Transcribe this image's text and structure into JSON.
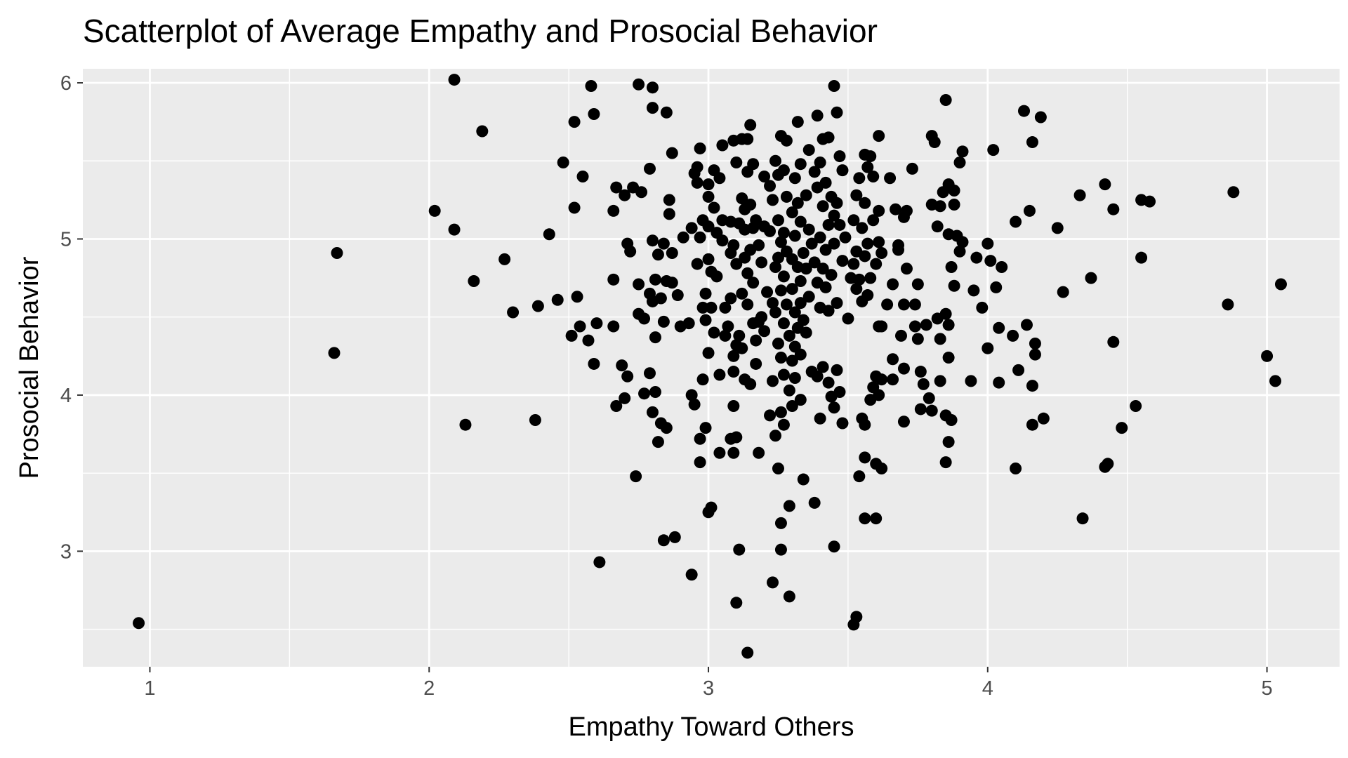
{
  "chart_data": {
    "type": "scatter",
    "title": "Scatterplot of Average Empathy and Prosocial Behavior",
    "xlabel": "Empathy Toward Others",
    "ylabel": "Prosocial Behavior",
    "xlim": [
      0.76,
      5.26
    ],
    "ylim": [
      2.26,
      6.09
    ],
    "x_ticks": [
      1,
      2,
      3,
      4,
      5
    ],
    "y_ticks": [
      3,
      4,
      5,
      6
    ],
    "x_tick_labels": [
      "1",
      "2",
      "3",
      "4",
      "5"
    ],
    "y_tick_labels": [
      "3",
      "4",
      "5",
      "6"
    ],
    "grid": true,
    "panel_background": "#ebebeb",
    "grid_color": "#ffffff",
    "point_color": "#000000",
    "legend": "none",
    "points": [
      [
        0.96,
        2.54
      ],
      [
        1.66,
        4.27
      ],
      [
        1.67,
        4.91
      ],
      [
        2.02,
        5.18
      ],
      [
        2.09,
        6.02
      ],
      [
        2.09,
        5.06
      ],
      [
        2.13,
        3.81
      ],
      [
        2.16,
        4.73
      ],
      [
        2.19,
        5.69
      ],
      [
        2.27,
        4.87
      ],
      [
        2.3,
        4.53
      ],
      [
        2.38,
        3.84
      ],
      [
        2.39,
        4.57
      ],
      [
        2.43,
        5.03
      ],
      [
        2.46,
        4.61
      ],
      [
        2.48,
        5.49
      ],
      [
        2.52,
        5.75
      ],
      [
        2.52,
        5.2
      ],
      [
        2.53,
        4.63
      ],
      [
        2.54,
        4.44
      ],
      [
        2.55,
        5.4
      ],
      [
        2.51,
        4.38
      ],
      [
        2.57,
        4.35
      ],
      [
        2.58,
        5.98
      ],
      [
        2.59,
        5.8
      ],
      [
        2.59,
        4.2
      ],
      [
        2.6,
        4.46
      ],
      [
        2.61,
        2.93
      ],
      [
        2.66,
        5.18
      ],
      [
        2.66,
        4.74
      ],
      [
        2.66,
        4.44
      ],
      [
        2.67,
        3.93
      ],
      [
        2.67,
        5.33
      ],
      [
        2.69,
        4.19
      ],
      [
        2.7,
        5.28
      ],
      [
        2.7,
        3.98
      ],
      [
        2.71,
        4.12
      ],
      [
        2.71,
        4.97
      ],
      [
        2.72,
        4.92
      ],
      [
        2.73,
        5.33
      ],
      [
        2.74,
        3.48
      ],
      [
        2.75,
        4.71
      ],
      [
        2.75,
        4.52
      ],
      [
        2.75,
        5.99
      ],
      [
        2.76,
        5.3
      ],
      [
        2.77,
        4.49
      ],
      [
        2.77,
        4.01
      ],
      [
        2.79,
        5.45
      ],
      [
        2.79,
        4.65
      ],
      [
        2.79,
        4.14
      ],
      [
        2.8,
        5.97
      ],
      [
        2.8,
        5.84
      ],
      [
        2.8,
        4.99
      ],
      [
        2.8,
        4.6
      ],
      [
        2.8,
        3.89
      ],
      [
        2.81,
        4.74
      ],
      [
        2.81,
        4.37
      ],
      [
        2.81,
        4.02
      ],
      [
        2.82,
        4.9
      ],
      [
        2.82,
        3.7
      ],
      [
        2.83,
        4.62
      ],
      [
        2.83,
        3.82
      ],
      [
        2.84,
        3.07
      ],
      [
        2.84,
        4.97
      ],
      [
        2.84,
        4.47
      ],
      [
        2.85,
        5.81
      ],
      [
        2.85,
        4.73
      ],
      [
        2.85,
        3.79
      ],
      [
        2.86,
        5.25
      ],
      [
        2.86,
        5.16
      ],
      [
        2.87,
        4.91
      ],
      [
        2.87,
        4.72
      ],
      [
        2.87,
        5.55
      ],
      [
        2.88,
        3.09
      ],
      [
        2.89,
        4.64
      ],
      [
        2.9,
        4.44
      ],
      [
        2.91,
        5.01
      ],
      [
        2.93,
        4.46
      ],
      [
        2.94,
        5.07
      ],
      [
        2.94,
        4.0
      ],
      [
        2.94,
        2.85
      ],
      [
        2.95,
        3.94
      ],
      [
        2.95,
        5.42
      ],
      [
        2.96,
        5.36
      ],
      [
        2.96,
        5.46
      ],
      [
        2.96,
        4.84
      ],
      [
        2.97,
        5.58
      ],
      [
        2.97,
        5.01
      ],
      [
        2.97,
        3.72
      ],
      [
        2.97,
        3.57
      ],
      [
        2.98,
        4.56
      ],
      [
        2.98,
        5.12
      ],
      [
        2.98,
        4.1
      ],
      [
        2.99,
        4.65
      ],
      [
        2.99,
        3.79
      ],
      [
        2.99,
        4.48
      ],
      [
        3.0,
        5.35
      ],
      [
        3.0,
        5.08
      ],
      [
        3.0,
        4.87
      ],
      [
        3.0,
        4.27
      ],
      [
        3.0,
        3.25
      ],
      [
        3.0,
        5.27
      ],
      [
        3.01,
        4.56
      ],
      [
        3.01,
        3.28
      ],
      [
        3.01,
        4.79
      ],
      [
        3.02,
        5.2
      ],
      [
        3.02,
        4.4
      ],
      [
        3.02,
        5.44
      ],
      [
        3.03,
        4.76
      ],
      [
        3.03,
        5.04
      ],
      [
        3.04,
        5.39
      ],
      [
        3.04,
        4.13
      ],
      [
        3.04,
        3.63
      ],
      [
        3.05,
        5.6
      ],
      [
        3.05,
        5.12
      ],
      [
        3.05,
        4.99
      ],
      [
        3.06,
        4.56
      ],
      [
        3.06,
        4.38
      ],
      [
        3.07,
        4.44
      ],
      [
        3.08,
        5.11
      ],
      [
        3.08,
        4.91
      ],
      [
        3.08,
        4.62
      ],
      [
        3.08,
        3.72
      ],
      [
        3.09,
        5.63
      ],
      [
        3.09,
        4.96
      ],
      [
        3.09,
        4.25
      ],
      [
        3.09,
        4.15
      ],
      [
        3.09,
        3.93
      ],
      [
        3.09,
        3.63
      ],
      [
        3.1,
        5.49
      ],
      [
        3.1,
        4.84
      ],
      [
        3.1,
        4.32
      ],
      [
        3.1,
        3.73
      ],
      [
        3.1,
        2.67
      ],
      [
        3.11,
        5.1
      ],
      [
        3.11,
        4.38
      ],
      [
        3.11,
        3.01
      ],
      [
        3.12,
        5.64
      ],
      [
        3.12,
        5.26
      ],
      [
        3.12,
        4.65
      ],
      [
        3.12,
        4.3
      ],
      [
        3.13,
        5.19
      ],
      [
        3.13,
        5.06
      ],
      [
        3.13,
        4.88
      ],
      [
        3.13,
        4.1
      ],
      [
        3.14,
        5.64
      ],
      [
        3.14,
        5.43
      ],
      [
        3.14,
        4.78
      ],
      [
        3.14,
        4.58
      ],
      [
        3.14,
        2.35
      ],
      [
        3.15,
        5.73
      ],
      [
        3.15,
        5.22
      ],
      [
        3.15,
        4.93
      ],
      [
        3.15,
        4.07
      ],
      [
        3.16,
        5.48
      ],
      [
        3.16,
        5.07
      ],
      [
        3.16,
        4.72
      ],
      [
        3.16,
        4.46
      ],
      [
        3.17,
        5.12
      ],
      [
        3.17,
        4.35
      ],
      [
        3.17,
        4.2
      ],
      [
        3.18,
        4.96
      ],
      [
        3.18,
        4.47
      ],
      [
        3.18,
        3.63
      ],
      [
        3.19,
        4.85
      ],
      [
        3.19,
        4.5
      ],
      [
        3.2,
        5.4
      ],
      [
        3.2,
        5.08
      ],
      [
        3.2,
        4.41
      ],
      [
        3.21,
        4.66
      ],
      [
        3.22,
        5.34
      ],
      [
        3.22,
        5.05
      ],
      [
        3.22,
        3.87
      ],
      [
        3.23,
        5.25
      ],
      [
        3.23,
        4.59
      ],
      [
        3.23,
        4.09
      ],
      [
        3.23,
        2.8
      ],
      [
        3.24,
        5.5
      ],
      [
        3.24,
        4.82
      ],
      [
        3.24,
        4.53
      ],
      [
        3.24,
        3.74
      ],
      [
        3.25,
        5.41
      ],
      [
        3.25,
        5.12
      ],
      [
        3.25,
        4.88
      ],
      [
        3.25,
        4.33
      ],
      [
        3.25,
        3.53
      ],
      [
        3.26,
        5.66
      ],
      [
        3.26,
        4.98
      ],
      [
        3.26,
        4.67
      ],
      [
        3.26,
        4.24
      ],
      [
        3.26,
        3.89
      ],
      [
        3.26,
        3.18
      ],
      [
        3.26,
        3.01
      ],
      [
        3.27,
        5.44
      ],
      [
        3.27,
        5.04
      ],
      [
        3.27,
        4.76
      ],
      [
        3.27,
        4.46
      ],
      [
        3.27,
        4.13
      ],
      [
        3.27,
        3.81
      ],
      [
        3.28,
        5.63
      ],
      [
        3.28,
        5.27
      ],
      [
        3.28,
        4.92
      ],
      [
        3.28,
        4.58
      ],
      [
        3.29,
        4.38
      ],
      [
        3.29,
        4.03
      ],
      [
        3.29,
        3.29
      ],
      [
        3.29,
        2.71
      ],
      [
        3.3,
        5.17
      ],
      [
        3.3,
        4.87
      ],
      [
        3.3,
        4.68
      ],
      [
        3.3,
        4.22
      ],
      [
        3.3,
        3.93
      ],
      [
        3.31,
        5.39
      ],
      [
        3.31,
        5.02
      ],
      [
        3.31,
        4.53
      ],
      [
        3.31,
        4.31
      ],
      [
        3.31,
        4.11
      ],
      [
        3.32,
        5.75
      ],
      [
        3.32,
        5.23
      ],
      [
        3.32,
        4.82
      ],
      [
        3.32,
        4.43
      ],
      [
        3.33,
        5.48
      ],
      [
        3.33,
        5.11
      ],
      [
        3.33,
        4.73
      ],
      [
        3.33,
        4.59
      ],
      [
        3.33,
        4.26
      ],
      [
        3.33,
        3.97
      ],
      [
        3.34,
        4.91
      ],
      [
        3.34,
        4.48
      ],
      [
        3.34,
        3.46
      ],
      [
        3.35,
        5.28
      ],
      [
        3.35,
        4.81
      ],
      [
        3.35,
        4.4
      ],
      [
        3.36,
        5.57
      ],
      [
        3.36,
        5.06
      ],
      [
        3.36,
        4.63
      ],
      [
        3.37,
        4.97
      ],
      [
        3.37,
        4.15
      ],
      [
        3.38,
        5.43
      ],
      [
        3.38,
        4.85
      ],
      [
        3.38,
        3.31
      ],
      [
        3.39,
        5.79
      ],
      [
        3.39,
        5.33
      ],
      [
        3.39,
        4.72
      ],
      [
        3.39,
        4.12
      ],
      [
        3.4,
        5.49
      ],
      [
        3.4,
        5.01
      ],
      [
        3.4,
        4.56
      ],
      [
        3.4,
        3.85
      ],
      [
        3.41,
        5.64
      ],
      [
        3.41,
        5.21
      ],
      [
        3.41,
        4.81
      ],
      [
        3.41,
        4.18
      ],
      [
        3.42,
        5.36
      ],
      [
        3.42,
        4.93
      ],
      [
        3.42,
        4.69
      ],
      [
        3.43,
        5.65
      ],
      [
        3.43,
        5.09
      ],
      [
        3.43,
        4.54
      ],
      [
        3.43,
        4.08
      ],
      [
        3.44,
        5.27
      ],
      [
        3.44,
        4.77
      ],
      [
        3.44,
        3.99
      ],
      [
        3.45,
        5.98
      ],
      [
        3.45,
        5.15
      ],
      [
        3.45,
        4.97
      ],
      [
        3.45,
        3.92
      ],
      [
        3.45,
        3.03
      ],
      [
        3.46,
        5.81
      ],
      [
        3.46,
        5.23
      ],
      [
        3.46,
        4.59
      ],
      [
        3.46,
        4.16
      ],
      [
        3.47,
        5.53
      ],
      [
        3.47,
        5.09
      ],
      [
        3.47,
        4.02
      ],
      [
        3.48,
        5.44
      ],
      [
        3.48,
        4.86
      ],
      [
        3.48,
        3.82
      ],
      [
        3.49,
        5.01
      ],
      [
        3.5,
        4.49
      ],
      [
        3.51,
        4.75
      ],
      [
        3.52,
        5.12
      ],
      [
        3.52,
        4.84
      ],
      [
        3.52,
        2.53
      ],
      [
        3.53,
        5.28
      ],
      [
        3.53,
        4.92
      ],
      [
        3.53,
        4.68
      ],
      [
        3.53,
        2.58
      ],
      [
        3.54,
        5.39
      ],
      [
        3.54,
        4.74
      ],
      [
        3.54,
        3.48
      ],
      [
        3.55,
        5.07
      ],
      [
        3.55,
        4.6
      ],
      [
        3.55,
        3.85
      ],
      [
        3.56,
        5.54
      ],
      [
        3.56,
        5.23
      ],
      [
        3.56,
        4.89
      ],
      [
        3.56,
        3.81
      ],
      [
        3.56,
        3.6
      ],
      [
        3.56,
        3.21
      ],
      [
        3.57,
        5.46
      ],
      [
        3.57,
        4.97
      ],
      [
        3.57,
        4.64
      ],
      [
        3.58,
        5.53
      ],
      [
        3.58,
        4.75
      ],
      [
        3.58,
        3.97
      ],
      [
        3.59,
        5.4
      ],
      [
        3.59,
        5.12
      ],
      [
        3.59,
        4.05
      ],
      [
        3.6,
        4.84
      ],
      [
        3.6,
        4.12
      ],
      [
        3.6,
        3.56
      ],
      [
        3.6,
        3.21
      ],
      [
        3.61,
        5.66
      ],
      [
        3.61,
        5.18
      ],
      [
        3.61,
        4.98
      ],
      [
        3.61,
        4.44
      ],
      [
        3.61,
        4.0
      ],
      [
        3.62,
        4.91
      ],
      [
        3.62,
        4.44
      ],
      [
        3.62,
        4.1
      ],
      [
        3.62,
        3.53
      ],
      [
        3.64,
        4.58
      ],
      [
        3.65,
        5.39
      ],
      [
        3.66,
        4.71
      ],
      [
        3.66,
        4.23
      ],
      [
        3.66,
        4.1
      ],
      [
        3.67,
        5.19
      ],
      [
        3.68,
        4.96
      ],
      [
        3.68,
        4.93
      ],
      [
        3.69,
        4.38
      ],
      [
        3.7,
        5.14
      ],
      [
        3.7,
        4.58
      ],
      [
        3.7,
        4.17
      ],
      [
        3.7,
        3.83
      ],
      [
        3.71,
        5.18
      ],
      [
        3.71,
        4.81
      ],
      [
        3.73,
        5.45
      ],
      [
        3.74,
        4.58
      ],
      [
        3.74,
        4.44
      ],
      [
        3.75,
        4.36
      ],
      [
        3.75,
        4.71
      ],
      [
        3.76,
        4.15
      ],
      [
        3.76,
        3.91
      ],
      [
        3.77,
        4.07
      ],
      [
        3.78,
        4.45
      ],
      [
        3.79,
        3.98
      ],
      [
        3.8,
        5.66
      ],
      [
        3.8,
        5.22
      ],
      [
        3.8,
        3.9
      ],
      [
        3.81,
        5.62
      ],
      [
        3.82,
        5.08
      ],
      [
        3.82,
        4.49
      ],
      [
        3.83,
        5.21
      ],
      [
        3.83,
        4.36
      ],
      [
        3.83,
        4.09
      ],
      [
        3.84,
        5.3
      ],
      [
        3.85,
        5.89
      ],
      [
        3.85,
        4.52
      ],
      [
        3.85,
        3.87
      ],
      [
        3.85,
        3.57
      ],
      [
        3.86,
        5.35
      ],
      [
        3.86,
        5.03
      ],
      [
        3.86,
        4.45
      ],
      [
        3.86,
        4.24
      ],
      [
        3.86,
        3.7
      ],
      [
        3.87,
        4.82
      ],
      [
        3.87,
        3.84
      ],
      [
        3.88,
        5.22
      ],
      [
        3.88,
        5.31
      ],
      [
        3.88,
        4.7
      ],
      [
        3.89,
        5.02
      ],
      [
        3.9,
        4.92
      ],
      [
        3.9,
        5.49
      ],
      [
        3.91,
        5.56
      ],
      [
        3.91,
        4.98
      ],
      [
        3.94,
        4.09
      ],
      [
        3.95,
        4.67
      ],
      [
        3.96,
        4.88
      ],
      [
        3.98,
        4.56
      ],
      [
        4.0,
        4.97
      ],
      [
        4.0,
        4.3
      ],
      [
        4.01,
        4.86
      ],
      [
        4.02,
        5.57
      ],
      [
        4.03,
        4.69
      ],
      [
        4.04,
        4.43
      ],
      [
        4.04,
        4.08
      ],
      [
        4.05,
        4.82
      ],
      [
        4.09,
        4.38
      ],
      [
        4.1,
        3.53
      ],
      [
        4.1,
        5.11
      ],
      [
        4.11,
        4.16
      ],
      [
        4.13,
        5.82
      ],
      [
        4.14,
        4.45
      ],
      [
        4.15,
        5.18
      ],
      [
        4.16,
        5.62
      ],
      [
        4.16,
        4.06
      ],
      [
        4.16,
        3.81
      ],
      [
        4.17,
        4.33
      ],
      [
        4.17,
        4.26
      ],
      [
        4.19,
        5.78
      ],
      [
        4.2,
        3.85
      ],
      [
        4.25,
        5.07
      ],
      [
        4.27,
        4.66
      ],
      [
        4.33,
        5.28
      ],
      [
        4.34,
        3.21
      ],
      [
        4.37,
        4.75
      ],
      [
        4.42,
        5.35
      ],
      [
        4.42,
        3.54
      ],
      [
        4.43,
        3.56
      ],
      [
        4.45,
        5.19
      ],
      [
        4.45,
        4.34
      ],
      [
        4.48,
        3.79
      ],
      [
        4.53,
        3.93
      ],
      [
        4.55,
        5.25
      ],
      [
        4.55,
        4.88
      ],
      [
        4.58,
        5.24
      ],
      [
        4.86,
        4.58
      ],
      [
        4.88,
        5.3
      ],
      [
        5.0,
        4.25
      ],
      [
        5.03,
        4.09
      ],
      [
        5.05,
        4.71
      ]
    ]
  }
}
